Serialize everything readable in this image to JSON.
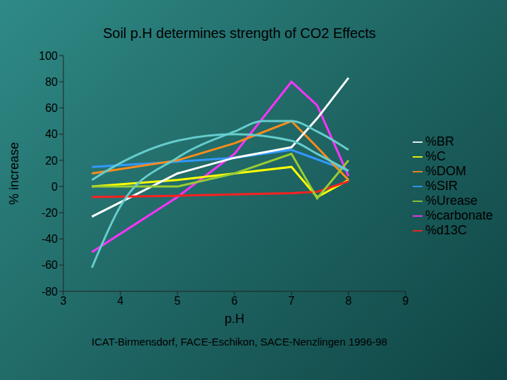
{
  "chart_data": {
    "type": "line",
    "title": "Soil p.H determines strength of CO2 Effects",
    "x_label": "p.H",
    "y_label": "% increase",
    "annotations": [
      "ICAT-Birmensdorf, FACE-Eschikon, SACE-Nenzlingen 1996-98"
    ],
    "x": [
      3.5,
      4,
      5,
      6,
      6.5,
      7,
      7.45,
      8
    ],
    "xlim": [
      3,
      9
    ],
    "xticks": [
      3,
      4,
      5,
      6,
      7,
      8,
      9
    ],
    "ylim": [
      -80,
      100
    ],
    "yticks": [
      -80,
      -60,
      -40,
      -20,
      0,
      20,
      40,
      60,
      80,
      100
    ],
    "grid": false,
    "legend": "right",
    "series": [
      {
        "name": "%carbonate",
        "color": "#ff33ff",
        "values": [
          -50,
          null,
          -8,
          25,
          null,
          80,
          62,
          8
        ]
      },
      {
        "name": "%C",
        "color": "#ffff00",
        "values": [
          0,
          null,
          5,
          10,
          null,
          15,
          -8,
          5
        ]
      },
      {
        "name": "%SIR",
        "color": "#3399ff",
        "values": [
          15,
          null,
          19,
          22,
          null,
          28,
          null,
          12
        ]
      },
      {
        "name": "%DOM",
        "color": "#ff8c1a",
        "values": [
          10,
          null,
          20,
          33,
          null,
          50,
          30,
          5
        ]
      },
      {
        "name": "%BR",
        "color": "#ffffff",
        "values": [
          -23,
          null,
          10,
          22,
          null,
          30,
          52,
          83
        ]
      },
      {
        "name": "%d13C",
        "color": "#ff2020",
        "values": [
          -8,
          null,
          -7,
          -6,
          null,
          -5,
          -4,
          4
        ]
      },
      {
        "name": "%Urease",
        "color": "#99cc33",
        "values": [
          0,
          null,
          0,
          10,
          null,
          25,
          -9,
          20
        ]
      },
      {
        "color": "#66cccc",
        "line_style": "smooth",
        "values": [
          -62,
          -15,
          22,
          42,
          50,
          50,
          42,
          28
        ]
      },
      {
        "color": "#66cccc",
        "line_style": "smooth",
        "values": [
          5,
          18,
          35,
          40,
          null,
          35,
          25,
          12
        ]
      }
    ]
  }
}
